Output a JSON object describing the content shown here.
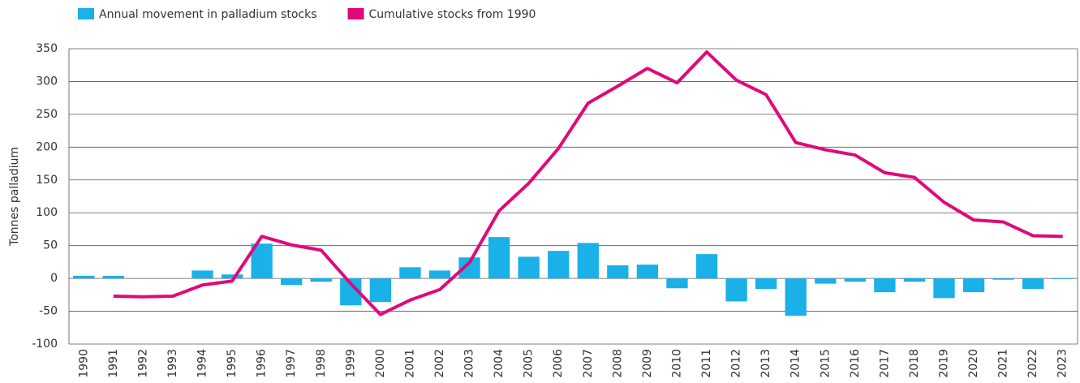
{
  "chart_data": {
    "type": "bar_line",
    "y_label": "Tonnes palladium",
    "categories": [
      "1990",
      "1991",
      "1992",
      "1993",
      "1994",
      "1995",
      "1996",
      "1997",
      "1998",
      "1999",
      "2000",
      "2001",
      "2002",
      "2003",
      "2004",
      "2005",
      "2006",
      "2007",
      "2008",
      "2009",
      "2010",
      "2011",
      "2012",
      "2013",
      "2014",
      "2015",
      "2016",
      "2017",
      "2018",
      "2019",
      "2020",
      "2021",
      "2022",
      "2023"
    ],
    "series": [
      {
        "name": "Annual movement in palladium stocks",
        "type": "bar",
        "color": "#1ab0e8",
        "values": [
          4,
          4,
          0,
          0,
          12,
          6,
          53,
          -10,
          -5,
          -41,
          -36,
          17,
          12,
          32,
          63,
          33,
          42,
          54,
          20,
          21,
          -15,
          37,
          -35,
          -16,
          -57,
          -8,
          -5,
          -21,
          -5,
          -30,
          -21,
          -2,
          -16,
          -1
        ]
      },
      {
        "name": "Cumulative stocks from 1990",
        "type": "line",
        "color": "#e0097a",
        "values": [
          null,
          -27,
          -28,
          -27,
          -10,
          -4,
          64,
          51,
          43,
          -8,
          -55,
          -33,
          -17,
          24,
          103,
          145,
          198,
          267,
          293,
          320,
          298,
          345,
          302,
          280,
          207,
          196,
          188,
          161,
          154,
          116,
          89,
          86,
          65,
          64
        ]
      }
    ],
    "ylim": [
      -100,
      350
    ],
    "yticks": [
      -100,
      -50,
      0,
      50,
      100,
      150,
      200,
      250,
      300,
      350
    ],
    "grid": true
  }
}
